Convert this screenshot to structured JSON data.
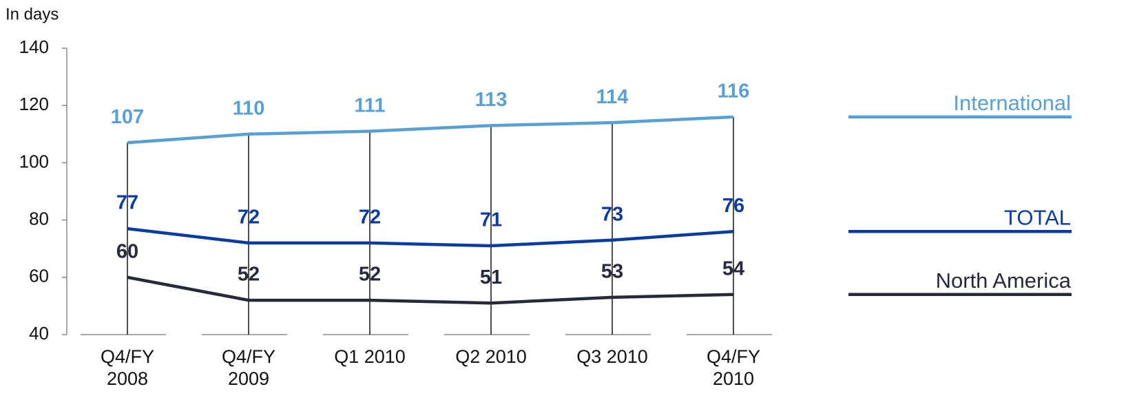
{
  "chart_data": {
    "type": "line",
    "ylabel": "In days",
    "categories": [
      "Q4/FY\n2008",
      "Q4/FY\n2009",
      "Q1 2010",
      "Q2 2010",
      "Q3 2010",
      "Q4/FY\n2010"
    ],
    "series": [
      {
        "name": "International",
        "color": "#58a0d2",
        "values": [
          107,
          110,
          111,
          113,
          114,
          116
        ]
      },
      {
        "name": "TOTAL",
        "color": "#0b3aa3",
        "values": [
          77,
          72,
          72,
          71,
          73,
          76
        ]
      },
      {
        "name": "North America",
        "color": "#272a3d",
        "values": [
          60,
          52,
          52,
          51,
          53,
          54
        ]
      }
    ],
    "ylim": [
      40,
      140
    ],
    "yticks": [
      40,
      60,
      80,
      100,
      120,
      140
    ]
  }
}
